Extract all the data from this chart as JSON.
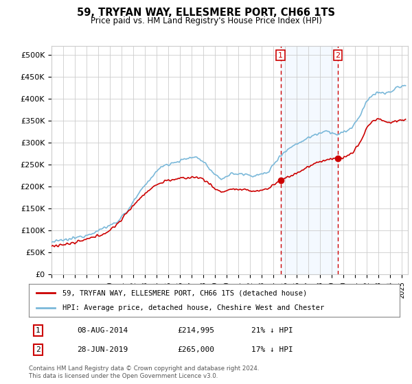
{
  "title": "59, TRYFAN WAY, ELLESMERE PORT, CH66 1TS",
  "subtitle": "Price paid vs. HM Land Registry's House Price Index (HPI)",
  "ylabel_ticks": [
    "£0",
    "£50K",
    "£100K",
    "£150K",
    "£200K",
    "£250K",
    "£300K",
    "£350K",
    "£400K",
    "£450K",
    "£500K"
  ],
  "ytick_values": [
    0,
    50000,
    100000,
    150000,
    200000,
    250000,
    300000,
    350000,
    400000,
    450000,
    500000
  ],
  "ylim": [
    0,
    520000
  ],
  "xlim_start": 1995.0,
  "xlim_end": 2025.5,
  "hpi_color": "#7ab8d9",
  "price_color": "#cc0000",
  "marker1_date": 2014.6,
  "marker1_price": 214995,
  "marker2_date": 2019.5,
  "marker2_price": 265000,
  "vline_color": "#cc0000",
  "shade_color": "#ddeeff",
  "legend_line1": "59, TRYFAN WAY, ELLESMERE PORT, CH66 1TS (detached house)",
  "legend_line2": "HPI: Average price, detached house, Cheshire West and Chester",
  "table_row1": [
    "1",
    "08-AUG-2014",
    "£214,995",
    "21% ↓ HPI"
  ],
  "table_row2": [
    "2",
    "28-JUN-2019",
    "£265,000",
    "17% ↓ HPI"
  ],
  "footer": "Contains HM Land Registry data © Crown copyright and database right 2024.\nThis data is licensed under the Open Government Licence v3.0.",
  "bg_color": "#ffffff",
  "grid_color": "#cccccc"
}
